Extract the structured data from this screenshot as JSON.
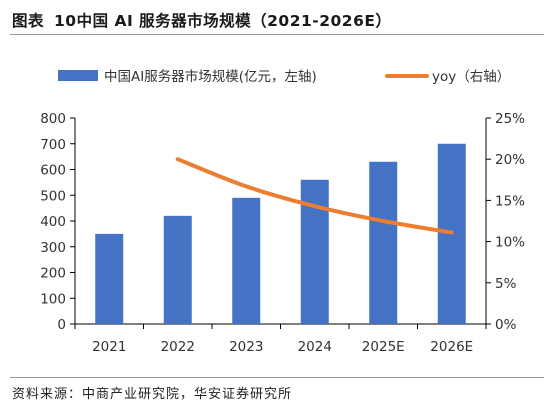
{
  "figure": {
    "label": "图表",
    "title": "10中国 AI 服务器市场规模（2021-2026E）",
    "source": "资料来源：中商产业研究院，华安证券研究所"
  },
  "colors": {
    "bar": "#4472C4",
    "line": "#ED7D31",
    "axis": "#000000"
  },
  "chart_data": {
    "type": "bar",
    "categories": [
      "2021",
      "2022",
      "2023",
      "2024",
      "2025E",
      "2026E"
    ],
    "series": [
      {
        "name": "中国AI服务器市场规模(亿元，左轴)",
        "type": "bar",
        "axis": "left",
        "values": [
          350,
          420,
          490,
          560,
          630,
          700
        ]
      },
      {
        "name": "yoy（右轴）",
        "type": "line",
        "axis": "right",
        "values": [
          null,
          20.0,
          16.7,
          14.3,
          12.5,
          11.1
        ]
      }
    ],
    "y_left": {
      "min": 0,
      "max": 800,
      "ticks": [
        0,
        100,
        200,
        300,
        400,
        500,
        600,
        700,
        800
      ]
    },
    "y_right": {
      "min": 0,
      "max": 25,
      "ticks": [
        "0%",
        "5%",
        "10%",
        "15%",
        "20%",
        "25%"
      ]
    },
    "legend": "top",
    "grid": false
  }
}
